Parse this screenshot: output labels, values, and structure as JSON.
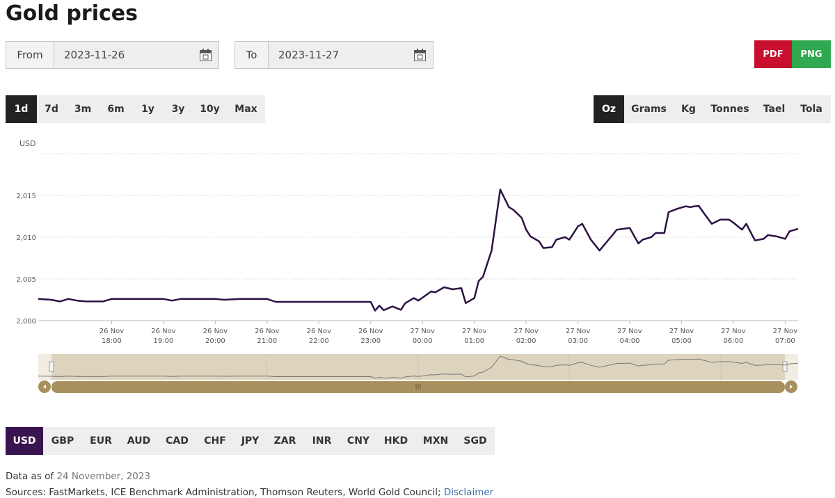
{
  "header": {
    "title": "Gold prices"
  },
  "date_range": {
    "from_label": "From",
    "from": "2023-11-26",
    "to_label": "To",
    "to": "2023-11-27"
  },
  "export_buttons": [
    "PDF",
    "PNG"
  ],
  "periods": {
    "options": [
      "1d",
      "7d",
      "3m",
      "6m",
      "1y",
      "3y",
      "10y",
      "Max"
    ],
    "active": 0
  },
  "units": {
    "options": [
      "Oz",
      "Grams",
      "Kg",
      "Tonnes",
      "Tael",
      "Tola"
    ],
    "active": 0
  },
  "chart_data": {
    "type": "line",
    "y_label": "USD",
    "color": "#2d1144",
    "grid": true,
    "xlim": [
      "26 Nov 16:35",
      "27 Nov 07:15"
    ],
    "ylim": [
      2000,
      2020
    ],
    "yticks": [
      {
        "value": 2000,
        "label": "2,000"
      },
      {
        "value": 2005,
        "label": "2,005"
      },
      {
        "value": 2010,
        "label": "2,010"
      },
      {
        "value": 2015,
        "label": "2,015"
      }
    ],
    "xticks": [
      {
        "value": "26 Nov 18:00",
        "label": [
          "26 Nov",
          "18:00"
        ]
      },
      {
        "value": "26 Nov 19:00",
        "label": [
          "26 Nov",
          "19:00"
        ]
      },
      {
        "value": "26 Nov 20:00",
        "label": [
          "26 Nov",
          "20:00"
        ]
      },
      {
        "value": "26 Nov 21:00",
        "label": [
          "26 Nov",
          "21:00"
        ]
      },
      {
        "value": "26 Nov 22:00",
        "label": [
          "26 Nov",
          "22:00"
        ]
      },
      {
        "value": "26 Nov 23:00",
        "label": [
          "26 Nov",
          "23:00"
        ]
      },
      {
        "value": "27 Nov 00:00",
        "label": [
          "27 Nov",
          "00:00"
        ]
      },
      {
        "value": "27 Nov 01:00",
        "label": [
          "27 Nov",
          "01:00"
        ]
      },
      {
        "value": "27 Nov 02:00",
        "label": [
          "27 Nov",
          "02:00"
        ]
      },
      {
        "value": "27 Nov 03:00",
        "label": [
          "27 Nov",
          "03:00"
        ]
      },
      {
        "value": "27 Nov 04:00",
        "label": [
          "27 Nov",
          "04:00"
        ]
      },
      {
        "value": "27 Nov 05:00",
        "label": [
          "27 Nov",
          "05:00"
        ]
      },
      {
        "value": "27 Nov 06:00",
        "label": [
          "27 Nov",
          "06:00"
        ]
      },
      {
        "value": "27 Nov 07:00",
        "label": [
          "27 Nov",
          "07:00"
        ]
      }
    ],
    "x": [
      "26 Nov 16:35",
      "26 Nov 16:50",
      "26 Nov 17:00",
      "26 Nov 17:10",
      "26 Nov 17:20",
      "26 Nov 17:30",
      "26 Nov 17:50",
      "26 Nov 18:00",
      "26 Nov 18:30",
      "26 Nov 19:00",
      "26 Nov 19:10",
      "26 Nov 19:20",
      "26 Nov 20:00",
      "26 Nov 20:10",
      "26 Nov 20:30",
      "26 Nov 21:00",
      "26 Nov 21:10",
      "26 Nov 22:00",
      "26 Nov 23:00",
      "26 Nov 23:05",
      "26 Nov 23:10",
      "26 Nov 23:15",
      "26 Nov 23:25",
      "26 Nov 23:35",
      "26 Nov 23:40",
      "26 Nov 23:50",
      "26 Nov 23:55",
      "27 Nov 00:00",
      "27 Nov 00:10",
      "27 Nov 00:15",
      "27 Nov 00:25",
      "27 Nov 00:35",
      "27 Nov 00:45",
      "27 Nov 00:50",
      "27 Nov 01:00",
      "27 Nov 01:05",
      "27 Nov 01:10",
      "27 Nov 01:20",
      "27 Nov 01:30",
      "27 Nov 01:40",
      "27 Nov 01:45",
      "27 Nov 01:55",
      "27 Nov 02:00",
      "27 Nov 02:05",
      "27 Nov 02:15",
      "27 Nov 02:20",
      "27 Nov 02:30",
      "27 Nov 02:35",
      "27 Nov 02:45",
      "27 Nov 02:50",
      "27 Nov 03:00",
      "27 Nov 03:05",
      "27 Nov 03:15",
      "27 Nov 03:25",
      "27 Nov 03:40",
      "27 Nov 03:45",
      "27 Nov 04:00",
      "27 Nov 04:10",
      "27 Nov 04:15",
      "27 Nov 04:25",
      "27 Nov 04:30",
      "27 Nov 04:40",
      "27 Nov 04:45",
      "27 Nov 04:55",
      "27 Nov 05:05",
      "27 Nov 05:10",
      "27 Nov 05:15",
      "27 Nov 05:20",
      "27 Nov 05:25",
      "27 Nov 05:35",
      "27 Nov 05:45",
      "27 Nov 05:55",
      "27 Nov 06:00",
      "27 Nov 06:10",
      "27 Nov 06:15",
      "27 Nov 06:25",
      "27 Nov 06:35",
      "27 Nov 06:40",
      "27 Nov 06:50",
      "27 Nov 07:00",
      "27 Nov 07:05",
      "27 Nov 07:15"
    ],
    "values": [
      2002.6,
      2002.5,
      2002.3,
      2002.6,
      2002.4,
      2002.3,
      2002.3,
      2002.6,
      2002.6,
      2002.6,
      2002.4,
      2002.6,
      2002.6,
      2002.5,
      2002.6,
      2002.6,
      2002.25,
      2002.25,
      2002.25,
      2001.2,
      2001.8,
      2001.25,
      2001.7,
      2001.3,
      2002.1,
      2002.7,
      2002.4,
      2002.75,
      2003.5,
      2003.4,
      2004,
      2003.75,
      2003.9,
      2002.1,
      2002.7,
      2004.75,
      2005.25,
      2008.4,
      2015.7,
      2013.6,
      2013.3,
      2012.3,
      2010.9,
      2010.1,
      2009.5,
      2008.7,
      2008.8,
      2009.7,
      2010,
      2009.7,
      2011.3,
      2011.6,
      2009.7,
      2008.4,
      2010.25,
      2010.9,
      2011.1,
      2009.25,
      2009.7,
      2010,
      2010.5,
      2010.5,
      2013,
      2013.4,
      2013.7,
      2013.6,
      2013.7,
      2013.75,
      2013,
      2011.6,
      2012.1,
      2012.1,
      2011.75,
      2010.9,
      2011.6,
      2009.6,
      2009.8,
      2010.25,
      2010.1,
      2009.8,
      2010.7,
      2011
    ]
  },
  "currencies": {
    "options": [
      "USD",
      "GBP",
      "EUR",
      "AUD",
      "CAD",
      "CHF",
      "JPY",
      "ZAR",
      "INR",
      "CNY",
      "HKD",
      "MXN",
      "SGD"
    ],
    "active": 0
  },
  "footer": {
    "data_as_of_label": "Data as of",
    "data_as_of": "24 November, 2023",
    "sources": "Sources: FastMarkets, ICE Benchmark Administration, Thomson Reuters, World Gold Council;",
    "disclaimer": "Disclaimer"
  }
}
